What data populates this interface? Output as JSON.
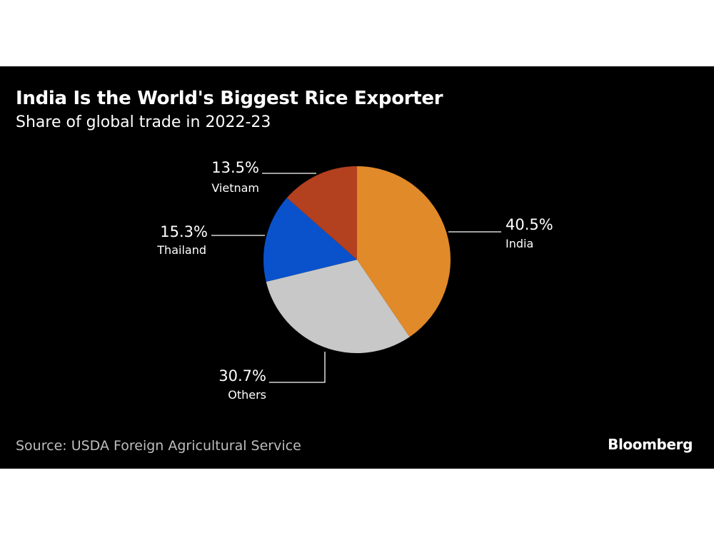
{
  "chart_data": {
    "type": "pie",
    "title": "India Is the World's Biggest Rice Exporter",
    "subtitle": "Share of global trade in 2022-23",
    "unit": "%",
    "start": "12 o'clock",
    "direction": "clockwise",
    "slices": [
      {
        "name": "India",
        "value": 40.5,
        "label": "40.5%",
        "color": "#E08A2A"
      },
      {
        "name": "Others",
        "value": 30.7,
        "label": "30.7%",
        "color": "#C8C8C8"
      },
      {
        "name": "Thailand",
        "value": 15.3,
        "label": "15.3%",
        "color": "#0A52CC"
      },
      {
        "name": "Vietnam",
        "value": 13.5,
        "label": "13.5%",
        "color": "#B3401F"
      }
    ]
  },
  "source": "Source: USDA Foreign Agricultural Service",
  "brand": "Bloomberg",
  "colors": {
    "background": "#000000",
    "text": "#ffffff",
    "source_text": "#bdbdbd",
    "leader_line": "#ffffff"
  }
}
